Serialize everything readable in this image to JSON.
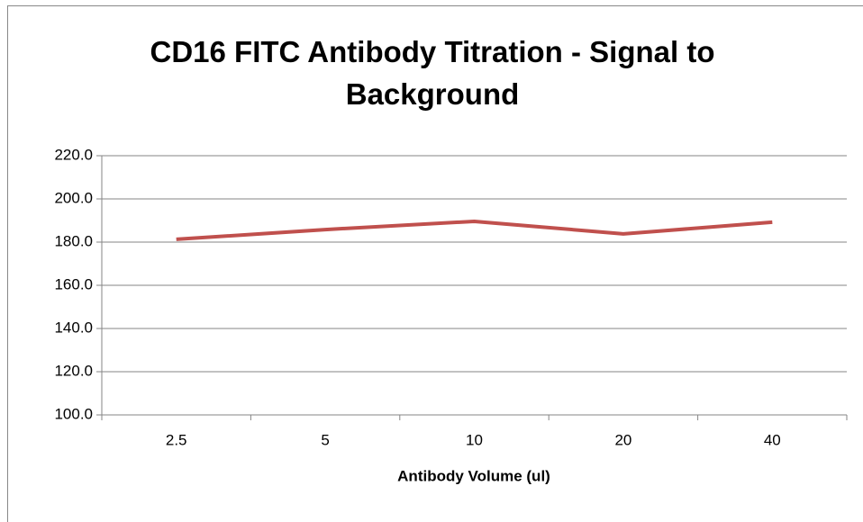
{
  "chart_data": {
    "type": "line",
    "title": "CD16 FITC Antibody Titration - Signal to Background",
    "x_label": "Antibody Volume (ul)",
    "categories": [
      "2.5",
      "5",
      "10",
      "20",
      "40"
    ],
    "series": [
      {
        "name": "Signal to Background",
        "color": "#c0504d",
        "values": [
          181.3,
          185.8,
          189.6,
          183.8,
          189.2
        ]
      }
    ],
    "ylim": [
      100,
      220
    ],
    "yticks": [
      {
        "value": 100,
        "label": "100.0"
      },
      {
        "value": 120,
        "label": "120.0"
      },
      {
        "value": 140,
        "label": "140.0"
      },
      {
        "value": 160,
        "label": "160.0"
      },
      {
        "value": 180,
        "label": "180.0"
      },
      {
        "value": 200,
        "label": "200.0"
      },
      {
        "value": 220,
        "label": "220.0"
      }
    ],
    "grid": true,
    "legend": false
  }
}
